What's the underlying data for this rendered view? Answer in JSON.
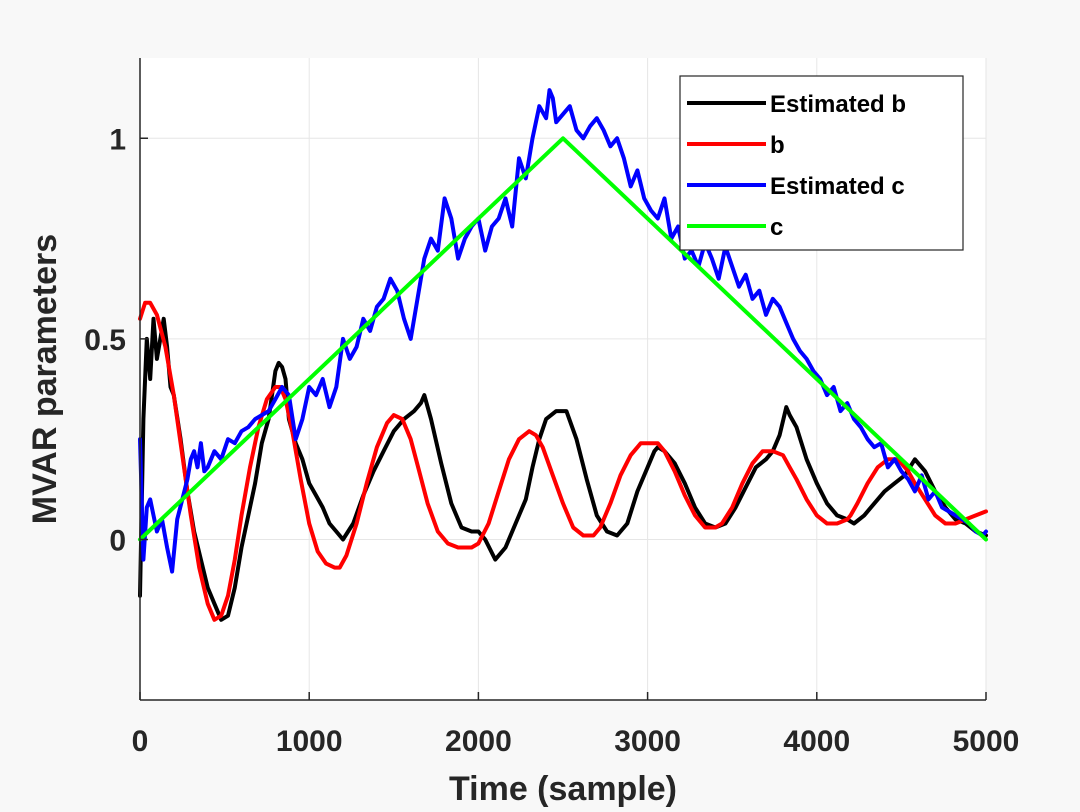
{
  "chart_data": {
    "type": "line",
    "title": "",
    "xlabel": "Time (sample)",
    "ylabel": "MVAR parameters",
    "xlim": [
      0,
      5000
    ],
    "ylim": [
      -0.4,
      1.2
    ],
    "xticks": [
      0,
      1000,
      2000,
      3000,
      4000,
      5000
    ],
    "xtick_labels": [
      "0",
      "1000",
      "2000",
      "3000",
      "4000",
      "5000"
    ],
    "yticks": [
      0,
      0.5,
      1
    ],
    "ytick_labels": [
      "0",
      "0.5",
      "1"
    ],
    "grid": true,
    "legend_position": "top-right",
    "series": [
      {
        "name": "Estimated b",
        "color": "#000000",
        "x": [
          0,
          20,
          40,
          60,
          80,
          100,
          120,
          140,
          160,
          180,
          200,
          240,
          280,
          320,
          360,
          400,
          440,
          480,
          520,
          560,
          600,
          640,
          680,
          720,
          760,
          800,
          820,
          840,
          860,
          880,
          920,
          960,
          1000,
          1040,
          1080,
          1120,
          1160,
          1200,
          1260,
          1320,
          1380,
          1440,
          1500,
          1560,
          1620,
          1660,
          1680,
          1720,
          1780,
          1840,
          1900,
          1960,
          2000,
          2040,
          2100,
          2160,
          2220,
          2280,
          2320,
          2360,
          2400,
          2460,
          2520,
          2580,
          2640,
          2700,
          2760,
          2820,
          2880,
          2940,
          3000,
          3040,
          3060,
          3100,
          3160,
          3220,
          3280,
          3340,
          3400,
          3460,
          3520,
          3580,
          3640,
          3700,
          3740,
          3780,
          3820,
          3840,
          3880,
          3940,
          4000,
          4060,
          4120,
          4180,
          4220,
          4280,
          4340,
          4400,
          4460,
          4520,
          4580,
          4640,
          4700,
          4760,
          4820,
          4880,
          4940,
          5000
        ],
        "y": [
          -0.14,
          0.3,
          0.5,
          0.4,
          0.55,
          0.45,
          0.5,
          0.55,
          0.48,
          0.38,
          0.36,
          0.25,
          0.12,
          0.02,
          -0.05,
          -0.12,
          -0.16,
          -0.2,
          -0.19,
          -0.12,
          -0.02,
          0.06,
          0.14,
          0.24,
          0.3,
          0.42,
          0.44,
          0.43,
          0.4,
          0.3,
          0.24,
          0.2,
          0.14,
          0.11,
          0.08,
          0.04,
          0.02,
          0.0,
          0.04,
          0.11,
          0.17,
          0.22,
          0.27,
          0.3,
          0.32,
          0.34,
          0.36,
          0.3,
          0.19,
          0.09,
          0.03,
          0.02,
          0.02,
          0.0,
          -0.05,
          -0.02,
          0.04,
          0.1,
          0.18,
          0.25,
          0.3,
          0.32,
          0.32,
          0.25,
          0.15,
          0.06,
          0.02,
          0.01,
          0.04,
          0.12,
          0.18,
          0.22,
          0.23,
          0.22,
          0.19,
          0.14,
          0.08,
          0.04,
          0.03,
          0.04,
          0.08,
          0.13,
          0.18,
          0.2,
          0.22,
          0.26,
          0.33,
          0.31,
          0.28,
          0.2,
          0.14,
          0.09,
          0.06,
          0.05,
          0.04,
          0.06,
          0.09,
          0.12,
          0.14,
          0.16,
          0.2,
          0.17,
          0.12,
          0.08,
          0.05,
          0.04,
          0.02,
          0.01
        ]
      },
      {
        "name": "b",
        "color": "#ff0000",
        "x": [
          0,
          30,
          60,
          100,
          150,
          200,
          250,
          300,
          350,
          400,
          440,
          480,
          520,
          560,
          600,
          650,
          700,
          750,
          800,
          830,
          860,
          900,
          950,
          1000,
          1050,
          1100,
          1150,
          1180,
          1220,
          1280,
          1340,
          1400,
          1460,
          1500,
          1550,
          1600,
          1650,
          1700,
          1760,
          1820,
          1880,
          1940,
          1960,
          2000,
          2060,
          2120,
          2180,
          2240,
          2300,
          2340,
          2380,
          2440,
          2500,
          2560,
          2620,
          2680,
          2720,
          2780,
          2840,
          2900,
          2960,
          3020,
          3060,
          3100,
          3160,
          3220,
          3280,
          3340,
          3400,
          3440,
          3500,
          3560,
          3620,
          3680,
          3740,
          3800,
          3840,
          3880,
          3940,
          4000,
          4060,
          4120,
          4180,
          4200,
          4240,
          4300,
          4360,
          4420,
          4480,
          4540,
          4580,
          4640,
          4700,
          4760,
          4820,
          4880,
          4940,
          5000
        ],
        "y": [
          0.55,
          0.59,
          0.59,
          0.56,
          0.48,
          0.36,
          0.21,
          0.06,
          -0.07,
          -0.16,
          -0.2,
          -0.19,
          -0.14,
          -0.05,
          0.06,
          0.18,
          0.28,
          0.35,
          0.38,
          0.38,
          0.35,
          0.27,
          0.15,
          0.04,
          -0.03,
          -0.06,
          -0.07,
          -0.07,
          -0.04,
          0.04,
          0.14,
          0.23,
          0.29,
          0.31,
          0.3,
          0.25,
          0.17,
          0.09,
          0.02,
          -0.01,
          -0.02,
          -0.02,
          -0.02,
          -0.01,
          0.04,
          0.12,
          0.2,
          0.25,
          0.27,
          0.26,
          0.23,
          0.16,
          0.09,
          0.03,
          0.01,
          0.01,
          0.03,
          0.09,
          0.16,
          0.21,
          0.24,
          0.24,
          0.24,
          0.22,
          0.17,
          0.11,
          0.06,
          0.03,
          0.03,
          0.04,
          0.08,
          0.14,
          0.19,
          0.22,
          0.22,
          0.21,
          0.18,
          0.15,
          0.1,
          0.06,
          0.04,
          0.04,
          0.05,
          0.06,
          0.09,
          0.14,
          0.18,
          0.2,
          0.2,
          0.17,
          0.14,
          0.1,
          0.06,
          0.04,
          0.04,
          0.05,
          0.06,
          0.07
        ]
      },
      {
        "name": "Estimated c",
        "color": "#0000ff",
        "x": [
          0,
          20,
          40,
          60,
          80,
          100,
          130,
          160,
          190,
          220,
          250,
          280,
          300,
          320,
          340,
          360,
          380,
          400,
          440,
          480,
          520,
          560,
          600,
          640,
          680,
          720,
          760,
          800,
          840,
          880,
          920,
          960,
          1000,
          1040,
          1080,
          1120,
          1160,
          1200,
          1240,
          1280,
          1320,
          1360,
          1400,
          1440,
          1480,
          1520,
          1560,
          1600,
          1640,
          1680,
          1720,
          1760,
          1800,
          1840,
          1880,
          1920,
          1960,
          2000,
          2040,
          2080,
          2120,
          2160,
          2200,
          2240,
          2280,
          2320,
          2360,
          2400,
          2420,
          2440,
          2460,
          2500,
          2540,
          2580,
          2620,
          2660,
          2700,
          2740,
          2780,
          2820,
          2860,
          2900,
          2940,
          2980,
          3020,
          3060,
          3100,
          3140,
          3180,
          3220,
          3260,
          3300,
          3340,
          3380,
          3420,
          3460,
          3500,
          3540,
          3580,
          3620,
          3660,
          3700,
          3740,
          3780,
          3820,
          3860,
          3900,
          3940,
          3980,
          4020,
          4060,
          4100,
          4140,
          4180,
          4220,
          4260,
          4300,
          4340,
          4380,
          4420,
          4460,
          4500,
          4540,
          4580,
          4620,
          4660,
          4700,
          4740,
          4780,
          4820,
          4860,
          4900,
          4940,
          4980,
          5000
        ],
        "y": [
          0.25,
          -0.05,
          0.08,
          0.1,
          0.06,
          0.02,
          0.05,
          -0.02,
          -0.08,
          0.05,
          0.1,
          0.15,
          0.2,
          0.22,
          0.18,
          0.24,
          0.17,
          0.18,
          0.22,
          0.2,
          0.25,
          0.24,
          0.27,
          0.28,
          0.3,
          0.31,
          0.32,
          0.35,
          0.38,
          0.36,
          0.25,
          0.3,
          0.38,
          0.36,
          0.4,
          0.33,
          0.38,
          0.5,
          0.45,
          0.48,
          0.55,
          0.52,
          0.58,
          0.6,
          0.65,
          0.62,
          0.55,
          0.5,
          0.6,
          0.7,
          0.75,
          0.72,
          0.85,
          0.8,
          0.7,
          0.75,
          0.78,
          0.8,
          0.72,
          0.78,
          0.8,
          0.85,
          0.78,
          0.95,
          0.9,
          1.0,
          1.08,
          1.05,
          1.12,
          1.1,
          1.04,
          1.06,
          1.08,
          1.02,
          1.0,
          1.03,
          1.05,
          1.02,
          0.98,
          1.0,
          0.95,
          0.88,
          0.92,
          0.85,
          0.82,
          0.8,
          0.85,
          0.75,
          0.78,
          0.7,
          0.72,
          0.68,
          0.74,
          0.7,
          0.65,
          0.73,
          0.68,
          0.63,
          0.66,
          0.6,
          0.62,
          0.56,
          0.6,
          0.58,
          0.54,
          0.5,
          0.47,
          0.45,
          0.42,
          0.4,
          0.36,
          0.38,
          0.32,
          0.34,
          0.3,
          0.28,
          0.25,
          0.23,
          0.24,
          0.18,
          0.2,
          0.17,
          0.15,
          0.12,
          0.16,
          0.1,
          0.12,
          0.08,
          0.07,
          0.06,
          0.05,
          0.04,
          0.02,
          0.01,
          0.02
        ]
      },
      {
        "name": "c",
        "color": "#00ff00",
        "x": [
          0,
          2500,
          5000
        ],
        "y": [
          0,
          1,
          0
        ]
      }
    ]
  }
}
